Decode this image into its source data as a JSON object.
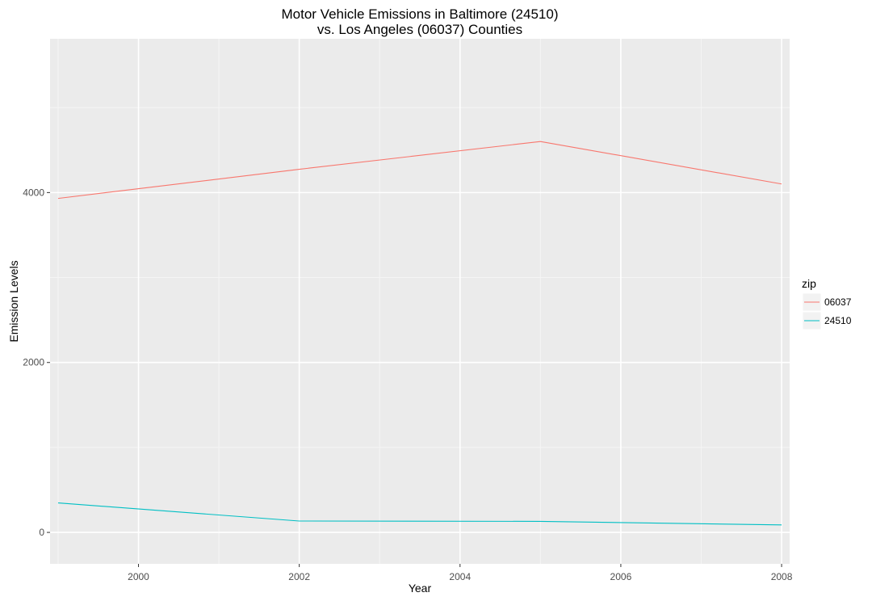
{
  "chart_data": {
    "type": "line",
    "title_lines": [
      "Motor Vehicle Emissions in Baltimore (24510)",
      "vs. Los Angeles (06037) Counties"
    ],
    "xlabel": "Year",
    "ylabel": "Emission Levels",
    "xlim": [
      1998.9,
      2008.1
    ],
    "ylim": [
      -370,
      5810
    ],
    "x_ticks": [
      2000,
      2002,
      2004,
      2006,
      2008
    ],
    "x_tick_labels": [
      "2000",
      "2002",
      "2004",
      "2006",
      "2008"
    ],
    "y_ticks": [
      0,
      2000,
      4000
    ],
    "y_tick_labels": [
      "0",
      "2000",
      "4000"
    ],
    "grid": true,
    "legend": {
      "title": "zip",
      "placement": "right"
    },
    "series": [
      {
        "name": "06037",
        "color": "#f8766d",
        "x": [
          1999,
          2002,
          2005,
          2008
        ],
        "y": [
          3931,
          4274,
          4601,
          4101
        ]
      },
      {
        "name": "24510",
        "color": "#00bfc4",
        "x": [
          1999,
          2002,
          2005,
          2008
        ],
        "y": [
          347,
          134,
          130,
          88
        ]
      }
    ]
  }
}
